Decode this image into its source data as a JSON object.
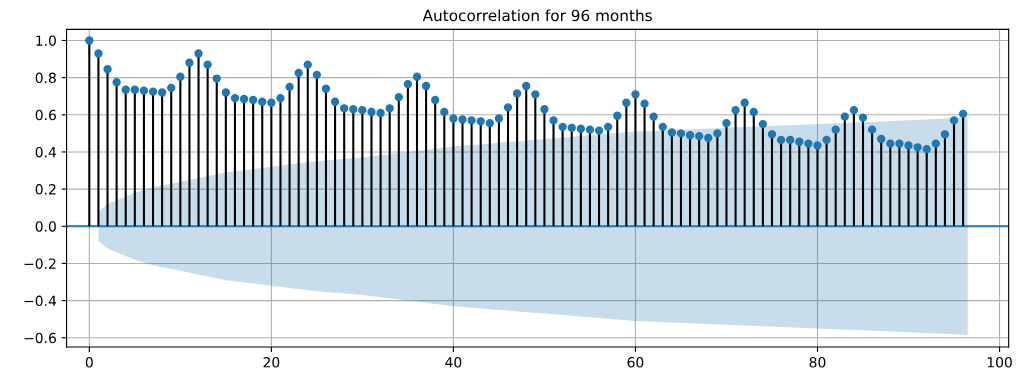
{
  "chart_data": {
    "type": "lollipop",
    "title": "Autocorrelation for 96 months",
    "x": [
      0,
      1,
      2,
      3,
      4,
      5,
      6,
      7,
      8,
      9,
      10,
      11,
      12,
      13,
      14,
      15,
      16,
      17,
      18,
      19,
      20,
      21,
      22,
      23,
      24,
      25,
      26,
      27,
      28,
      29,
      30,
      31,
      32,
      33,
      34,
      35,
      36,
      37,
      38,
      39,
      40,
      41,
      42,
      43,
      44,
      45,
      46,
      47,
      48,
      49,
      50,
      51,
      52,
      53,
      54,
      55,
      56,
      57,
      58,
      59,
      60,
      61,
      62,
      63,
      64,
      65,
      66,
      67,
      68,
      69,
      70,
      71,
      72,
      73,
      74,
      75,
      76,
      77,
      78,
      79,
      80,
      81,
      82,
      83,
      84,
      85,
      86,
      87,
      88,
      89,
      90,
      91,
      92,
      93,
      94,
      95,
      96
    ],
    "series": [
      {
        "color": "#1f77b4",
        "values": [
          1.0,
          0.93,
          0.845,
          0.775,
          0.735,
          0.735,
          0.73,
          0.725,
          0.72,
          0.745,
          0.805,
          0.88,
          0.93,
          0.87,
          0.795,
          0.72,
          0.69,
          0.685,
          0.68,
          0.67,
          0.665,
          0.69,
          0.75,
          0.825,
          0.87,
          0.815,
          0.74,
          0.67,
          0.635,
          0.63,
          0.625,
          0.615,
          0.61,
          0.635,
          0.695,
          0.765,
          0.805,
          0.755,
          0.68,
          0.615,
          0.58,
          0.575,
          0.57,
          0.565,
          0.555,
          0.58,
          0.64,
          0.715,
          0.755,
          0.71,
          0.63,
          0.57,
          0.535,
          0.53,
          0.525,
          0.52,
          0.515,
          0.535,
          0.595,
          0.665,
          0.71,
          0.66,
          0.59,
          0.535,
          0.505,
          0.5,
          0.49,
          0.485,
          0.475,
          0.5,
          0.555,
          0.625,
          0.665,
          0.615,
          0.55,
          0.495,
          0.465,
          0.465,
          0.455,
          0.445,
          0.435,
          0.465,
          0.52,
          0.59,
          0.625,
          0.585,
          0.52,
          0.47,
          0.445,
          0.445,
          0.435,
          0.425,
          0.415,
          0.445,
          0.495,
          0.57,
          0.605
        ]
      },
      {
        "type": "line",
        "color": "#1f77b4",
        "marker": "none",
        "x": [
          -2.5,
          1,
          2,
          3,
          5,
          7,
          10,
          15,
          20,
          25,
          30,
          35,
          40,
          45,
          50,
          55,
          60,
          65,
          70,
          75,
          80,
          85,
          90,
          96.5,
          101
        ],
        "values": [
          0,
          0,
          0,
          0,
          0,
          0,
          0,
          0,
          0,
          0,
          0,
          0,
          0,
          0,
          0,
          0,
          0,
          0,
          0,
          0,
          0,
          0,
          0,
          0,
          0
        ],
        "upper": [
          null,
          0.08,
          0.12,
          0.14,
          0.18,
          0.21,
          0.24,
          0.29,
          0.32,
          0.35,
          0.37,
          0.4,
          0.43,
          0.45,
          0.47,
          0.49,
          0.51,
          0.52,
          0.53,
          0.54,
          0.55,
          0.56,
          0.57,
          0.585,
          null
        ],
        "lower": [
          null,
          -0.08,
          -0.12,
          -0.14,
          -0.18,
          -0.21,
          -0.24,
          -0.29,
          -0.32,
          -0.35,
          -0.37,
          -0.4,
          -0.43,
          -0.45,
          -0.47,
          -0.49,
          -0.51,
          -0.52,
          -0.53,
          -0.54,
          -0.55,
          -0.56,
          -0.57,
          -0.585,
          null
        ]
      }
    ],
    "xlim": [
      -2.5,
      101
    ],
    "xticks": [
      0,
      20,
      40,
      60,
      80,
      100
    ],
    "ylim": [
      -0.65,
      1.06
    ],
    "yticks": [
      {
        "value": -0.6,
        "label": "−0.6"
      },
      {
        "value": -0.4,
        "label": "−0.4"
      },
      {
        "value": -0.2,
        "label": "−0.2"
      },
      {
        "value": 0,
        "label": "0.0"
      },
      0.2,
      0.4,
      0.6,
      0.8,
      {
        "value": 1,
        "label": "1.0"
      }
    ],
    "grid": true,
    "marker": "circle"
  }
}
